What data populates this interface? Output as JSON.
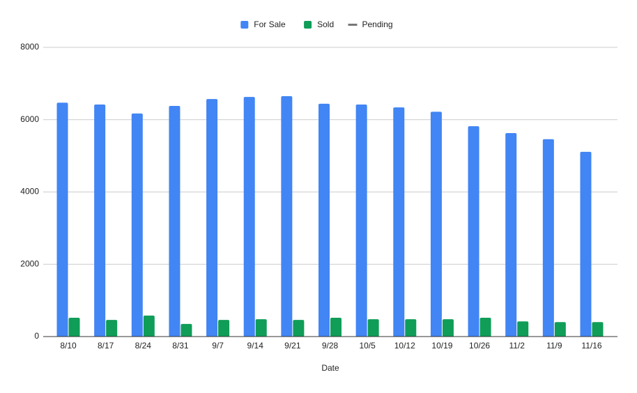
{
  "chart_data": {
    "type": "bar",
    "x_label": "Date",
    "categories": [
      "8/10",
      "8/17",
      "8/24",
      "8/31",
      "9/7",
      "9/14",
      "9/21",
      "9/28",
      "10/5",
      "10/12",
      "10/19",
      "10/26",
      "11/2",
      "11/9",
      "11/16"
    ],
    "series": [
      {
        "name": "For Sale",
        "color": "#4285f4",
        "values": [
          6470,
          6420,
          6170,
          6380,
          6570,
          6630,
          6650,
          6440,
          6420,
          6340,
          6220,
          5820,
          5630,
          5460,
          5110
        ]
      },
      {
        "name": "Sold",
        "color": "#0f9d58",
        "values": [
          520,
          460,
          580,
          350,
          460,
          480,
          460,
          520,
          480,
          480,
          480,
          520,
          420,
          400,
          400
        ]
      },
      {
        "name": "Pending",
        "color": "#777777",
        "values": [
          null,
          null,
          null,
          null,
          null,
          null,
          null,
          null,
          null,
          null,
          null,
          null,
          null,
          null,
          null
        ]
      }
    ],
    "ylim": [
      0,
      8000
    ],
    "yticks": [
      0,
      2000,
      4000,
      6000,
      8000
    ],
    "grid": true,
    "legend": "top"
  }
}
